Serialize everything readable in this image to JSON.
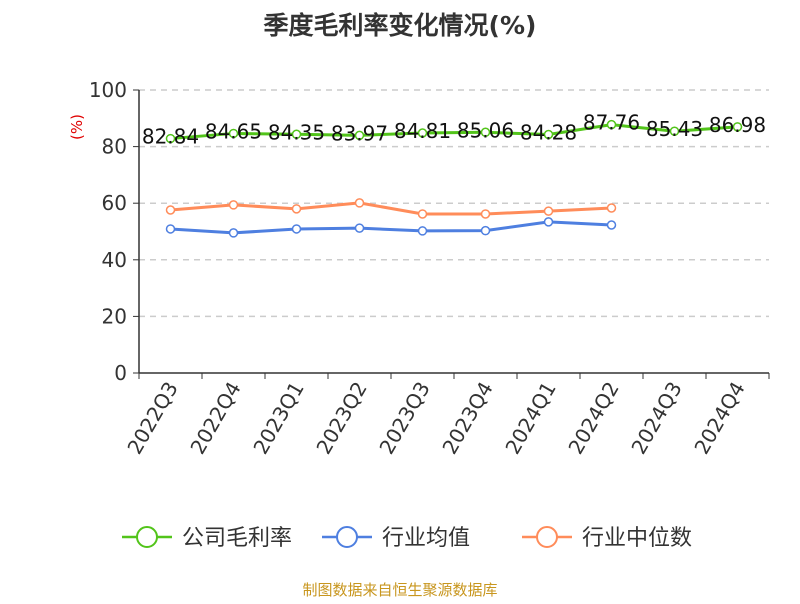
{
  "chart_data": {
    "type": "line",
    "title": "季度毛利率变化情况(%)",
    "ylabel": "(%)",
    "ylim": [
      0,
      100
    ],
    "yticks": [
      0,
      20,
      40,
      60,
      80,
      100
    ],
    "grid": true,
    "legend_placement": "bottom",
    "categories": [
      "2022Q3",
      "2022Q4",
      "2023Q1",
      "2023Q2",
      "2023Q3",
      "2023Q4",
      "2024Q1",
      "2024Q2",
      "2024Q3",
      "2024Q4"
    ],
    "series": [
      {
        "name": "公司毛利率",
        "color": "#52c41a",
        "values": [
          82.84,
          84.65,
          84.35,
          83.97,
          84.81,
          85.06,
          84.28,
          87.76,
          85.43,
          86.98
        ],
        "labels": true
      },
      {
        "name": "行业均值",
        "color": "#4e7fe0",
        "values": [
          50.9,
          49.5,
          50.9,
          51.2,
          50.2,
          50.3,
          53.4,
          52.3,
          null,
          null
        ]
      },
      {
        "name": "行业中位数",
        "color": "#ff8c5a",
        "values": [
          57.6,
          59.4,
          58.0,
          60.1,
          56.2,
          56.2,
          57.2,
          58.3,
          null,
          null
        ]
      }
    ],
    "source": "制图数据来自恒生聚源数据库"
  }
}
